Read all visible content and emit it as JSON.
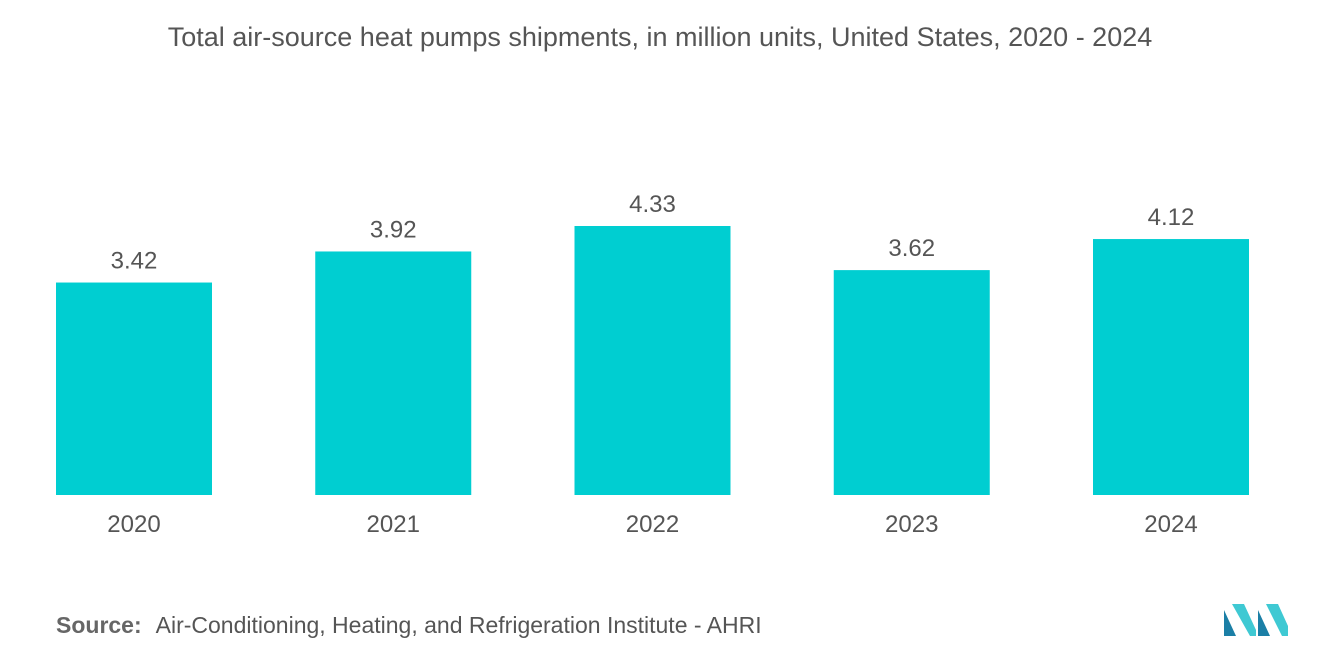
{
  "chart_data": {
    "type": "bar",
    "title": "Total air-source heat pumps shipments, in million units, United States, 2020 - 2024",
    "categories": [
      "2020",
      "2021",
      "2022",
      "2023",
      "2024"
    ],
    "values": [
      3.42,
      3.92,
      4.33,
      3.62,
      4.12
    ],
    "value_labels": [
      "3.42",
      "3.92",
      "4.33",
      "3.62",
      "4.12"
    ],
    "xlabel": "",
    "ylabel": "",
    "ylim": [
      0,
      4.33
    ],
    "grid": false,
    "bar_color": "#00CED1"
  },
  "source": {
    "label": "Source:",
    "text": "Air-Conditioning, Heating, and Refrigeration Institute - AHRI"
  },
  "colors": {
    "bar": "#00CED1",
    "text": "#555555",
    "logo_dark": "#1B7FA6",
    "logo_light": "#3FC9D3"
  },
  "logo": {
    "icon": "mordor-intelligence-logo-icon"
  }
}
